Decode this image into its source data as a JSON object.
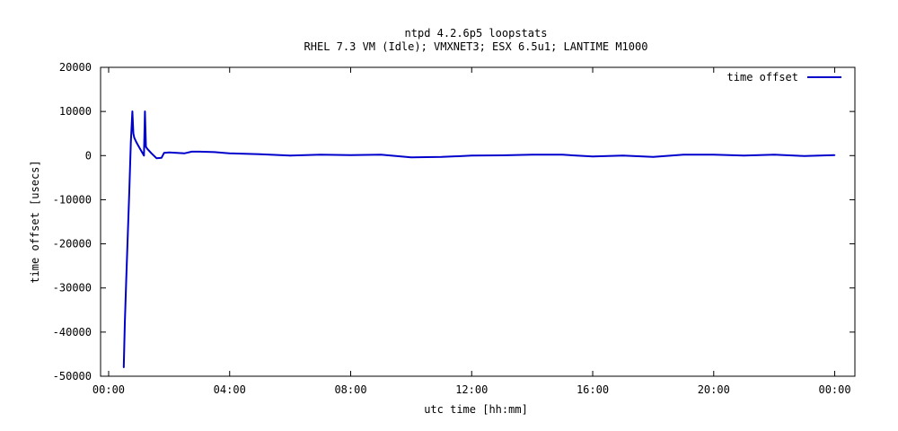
{
  "chart_data": {
    "type": "line",
    "title": "ntpd 4.2.6p5 loopstats",
    "subtitle": "RHEL 7.3 VM (Idle); VMXNET3; ESX 6.5u1; LANTIME M1000",
    "xlabel": "utc time [hh:mm]",
    "ylabel": "time offset [usecs]",
    "xlim": [
      "00:00",
      "00:00 (+1 day)"
    ],
    "x_tick_labels": [
      "00:00",
      "04:00",
      "08:00",
      "12:00",
      "16:00",
      "20:00",
      "00:00"
    ],
    "ylim": [
      -50000,
      20000
    ],
    "y_tick_labels": [
      "20000",
      "10000",
      "0",
      "-10000",
      "-20000",
      "-30000",
      "-40000",
      "-50000"
    ],
    "grid": false,
    "legend_position": "top-right",
    "series": [
      {
        "name": "time offset",
        "color": "#0000cc",
        "x": [
          "00:30",
          "00:32",
          "00:35",
          "00:38",
          "00:41",
          "00:44",
          "00:47",
          "00:49",
          "00:51",
          "00:55",
          "01:00",
          "01:05",
          "01:10",
          "01:12",
          "01:14",
          "01:17",
          "01:25",
          "01:35",
          "01:45",
          "01:50",
          "02:00",
          "02:30",
          "02:45",
          "03:00",
          "03:30",
          "04:00",
          "04:30",
          "05:00",
          "06:00",
          "07:00",
          "08:00",
          "09:00",
          "10:00",
          "11:00",
          "12:00",
          "13:00",
          "14:00",
          "15:00",
          "16:00",
          "17:00",
          "18:00",
          "19:00",
          "20:00",
          "21:00",
          "22:00",
          "23:00",
          "24:00"
        ],
        "y": [
          -48000,
          -38000,
          -28000,
          -18000,
          -8000,
          3000,
          10000,
          5000,
          4000,
          3000,
          2000,
          1000,
          0,
          10000,
          2000,
          1500,
          500,
          -600,
          -500,
          600,
          700,
          500,
          900,
          900,
          800,
          500,
          400,
          300,
          0,
          200,
          100,
          200,
          -400,
          -300,
          0,
          50,
          200,
          200,
          -200,
          0,
          -300,
          200,
          200,
          0,
          200,
          -100,
          100
        ]
      }
    ]
  }
}
